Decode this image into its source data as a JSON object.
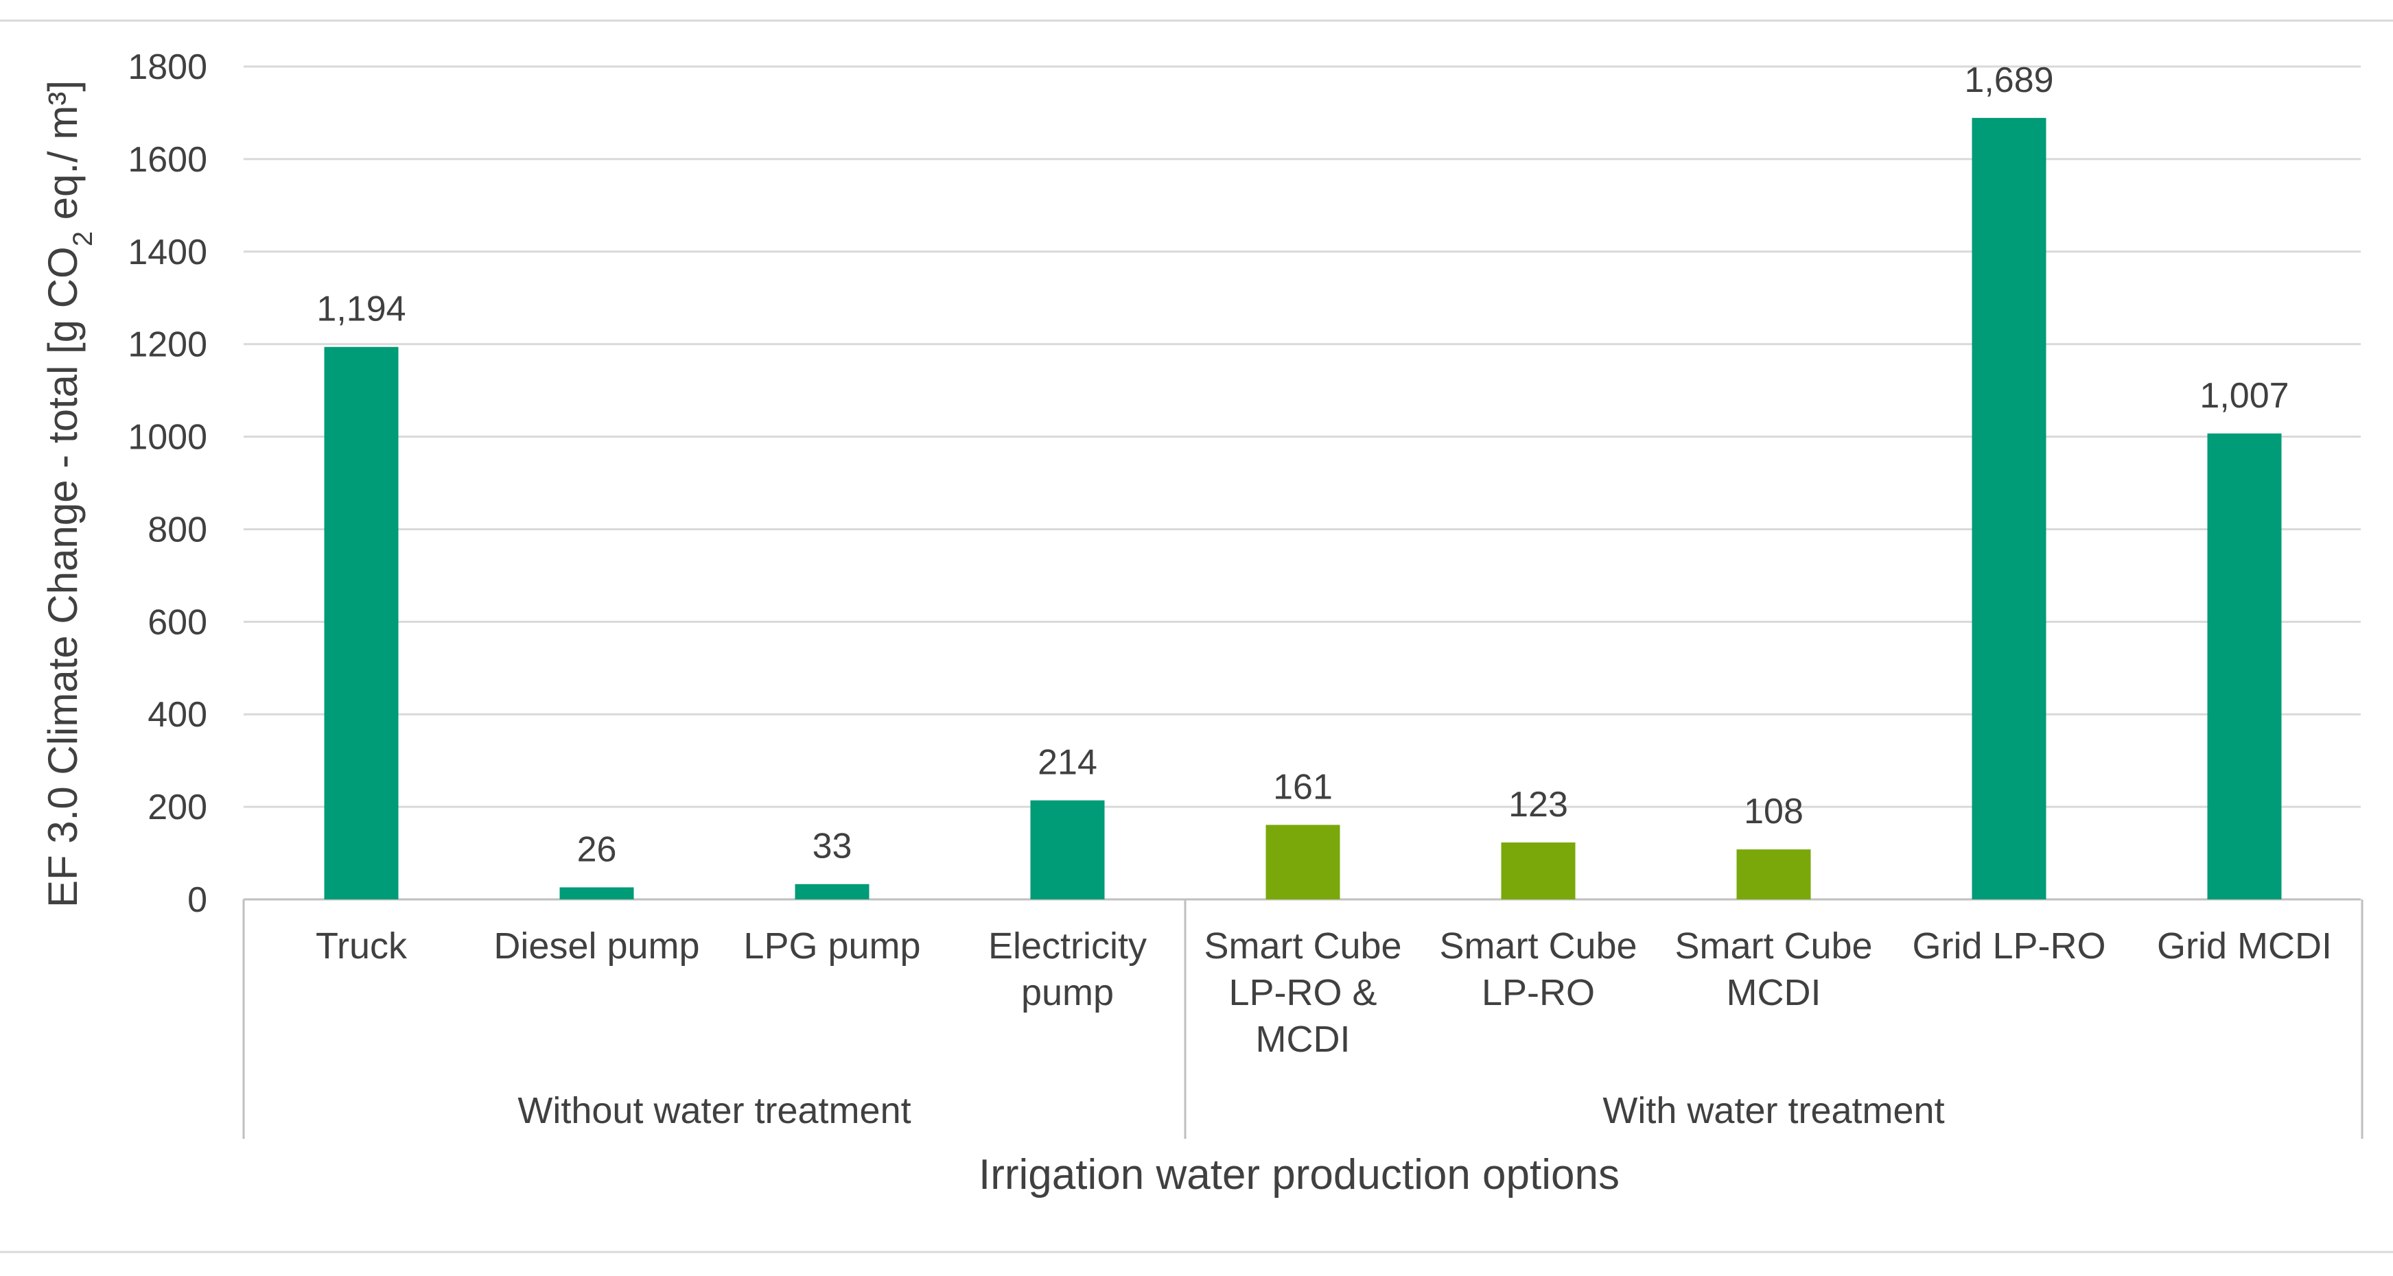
{
  "chart_data": {
    "type": "bar",
    "xlabel": "Irrigation water production options",
    "ylabel_main": "EF 3.0 Climate Change - total [g CO",
    "ylabel_sub": "2",
    "ylabel_tail": " eq./ m³]",
    "ylim": [
      0,
      1800
    ],
    "yticks": [
      "0",
      "200",
      "400",
      "600",
      "800",
      "1000",
      "1200",
      "1400",
      "1600",
      "1800"
    ],
    "grid": true,
    "colors": {
      "teal": "#009B77",
      "lime": "#7AA80A",
      "grid": "#D9D9D9",
      "axis": "#BFBFBF"
    },
    "categories": [
      {
        "lines": [
          "Truck"
        ],
        "value": 1194,
        "label": "1,194",
        "color": "teal"
      },
      {
        "lines": [
          "Diesel pump"
        ],
        "value": 26,
        "label": "26",
        "color": "teal"
      },
      {
        "lines": [
          "LPG pump"
        ],
        "value": 33,
        "label": "33",
        "color": "teal"
      },
      {
        "lines": [
          "Electricity",
          "pump"
        ],
        "value": 214,
        "label": "214",
        "color": "teal"
      },
      {
        "lines": [
          "Smart Cube",
          "LP-RO &",
          "MCDI"
        ],
        "value": 161,
        "label": "161",
        "color": "lime"
      },
      {
        "lines": [
          "Smart Cube",
          "LP-RO"
        ],
        "value": 123,
        "label": "123",
        "color": "lime"
      },
      {
        "lines": [
          "Smart Cube",
          "MCDI"
        ],
        "value": 108,
        "label": "108",
        "color": "lime"
      },
      {
        "lines": [
          "Grid LP-RO"
        ],
        "value": 1689,
        "label": "1,689",
        "color": "teal"
      },
      {
        "lines": [
          "Grid MCDI"
        ],
        "value": 1007,
        "label": "1,007",
        "color": "teal"
      }
    ],
    "groups": [
      {
        "label": "Without water treatment",
        "start": 0,
        "end": 4
      },
      {
        "label": "With water treatment",
        "start": 4,
        "end": 9
      }
    ]
  }
}
